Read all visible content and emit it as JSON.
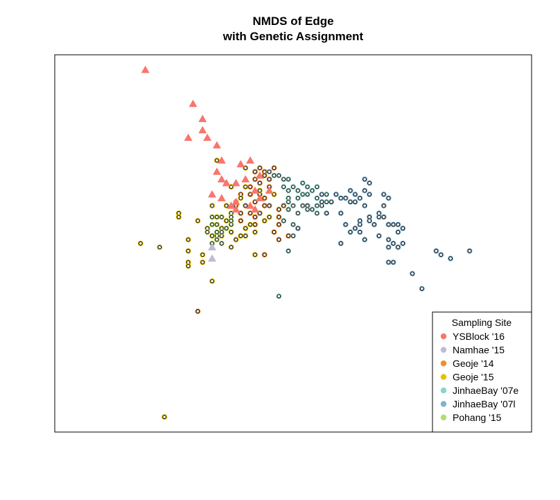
{
  "chart_data": {
    "type": "scatter",
    "title": [
      "NMDS of Edge",
      "with Genetic Assignment"
    ],
    "xlabel": "",
    "ylabel": "",
    "xlim": [
      0,
      100
    ],
    "ylim": [
      0,
      100
    ],
    "axes_shown": false,
    "grid": false,
    "legend": {
      "title": "Sampling Site",
      "placement": "bottom-right",
      "entries": [
        {
          "label": "YSBlock '16",
          "color": "#F8766D"
        },
        {
          "label": "Namhae '15",
          "color": "#BEBADA"
        },
        {
          "label": "Geoje '14",
          "color": "#F28E2B"
        },
        {
          "label": "Geoje '15",
          "color": "#E6C200"
        },
        {
          "label": "JinhaeBay '07e",
          "color": "#8DD3C7"
        },
        {
          "label": "JinhaeBay '07l",
          "color": "#80B1D3"
        },
        {
          "label": "Pohang '15",
          "color": "#B3DE69"
        }
      ]
    },
    "marker_note": "triangles: reference samples; open circles: genetically assigned samples",
    "series": [
      {
        "site": "YSBlock '16",
        "color": "#F8766D",
        "marker": "triangle",
        "points": [
          [
            19,
            96
          ],
          [
            29,
            87
          ],
          [
            31,
            83
          ],
          [
            31,
            80
          ],
          [
            28,
            78
          ],
          [
            32,
            78
          ],
          [
            34,
            76
          ],
          [
            35,
            72
          ],
          [
            39,
            71
          ],
          [
            34,
            69
          ],
          [
            35,
            67
          ],
          [
            36,
            66
          ],
          [
            38,
            66
          ],
          [
            41,
            72
          ],
          [
            43,
            68
          ],
          [
            40,
            67
          ],
          [
            45,
            64
          ],
          [
            43,
            62
          ],
          [
            42,
            64
          ],
          [
            33,
            63
          ],
          [
            41,
            60
          ],
          [
            42,
            59
          ],
          [
            38,
            59
          ],
          [
            37,
            60
          ],
          [
            35,
            62
          ],
          [
            38,
            61
          ]
        ]
      },
      {
        "site": "Namhae '15",
        "color": "#BEBADA",
        "marker": "triangle",
        "points": [
          [
            33,
            49
          ],
          [
            33,
            46
          ]
        ]
      },
      {
        "site": "Geoje '14",
        "color": "#F28E2B",
        "marker": "circle",
        "points": [
          [
            42,
            69
          ],
          [
            43,
            70
          ],
          [
            44,
            69
          ],
          [
            44,
            68
          ],
          [
            45,
            67
          ],
          [
            43,
            66
          ],
          [
            42,
            67
          ],
          [
            46,
            70
          ],
          [
            46,
            68
          ],
          [
            45,
            65
          ],
          [
            41,
            63
          ],
          [
            43,
            63
          ],
          [
            44,
            62
          ],
          [
            42,
            61
          ],
          [
            41,
            65
          ],
          [
            45,
            60
          ],
          [
            38,
            61
          ],
          [
            39,
            63
          ],
          [
            40,
            60
          ],
          [
            39,
            58
          ],
          [
            43,
            58
          ],
          [
            44,
            60
          ],
          [
            41,
            58
          ],
          [
            42,
            57
          ],
          [
            47,
            59
          ],
          [
            48,
            60
          ],
          [
            49,
            59
          ],
          [
            47,
            57
          ],
          [
            39,
            56
          ],
          [
            42,
            55
          ],
          [
            46,
            53
          ],
          [
            49,
            52
          ],
          [
            44,
            47
          ],
          [
            38,
            51
          ],
          [
            47,
            51
          ],
          [
            30,
            32
          ],
          [
            47,
            55
          ]
        ]
      },
      {
        "site": "Geoje '15",
        "color": "#E6C200",
        "marker": "circle",
        "points": [
          [
            34,
            72
          ],
          [
            40,
            70
          ],
          [
            40,
            65
          ],
          [
            37,
            65
          ],
          [
            36,
            60
          ],
          [
            33,
            60
          ],
          [
            37,
            58
          ],
          [
            34,
            57
          ],
          [
            34,
            55
          ],
          [
            36,
            56
          ],
          [
            35,
            54
          ],
          [
            35,
            52
          ],
          [
            37,
            53
          ],
          [
            40,
            52
          ],
          [
            41,
            55
          ],
          [
            44,
            56
          ],
          [
            45,
            57
          ],
          [
            26,
            58
          ],
          [
            26,
            57
          ],
          [
            30,
            56
          ],
          [
            32,
            54
          ],
          [
            33,
            52
          ],
          [
            37,
            49
          ],
          [
            39,
            52
          ],
          [
            31,
            47
          ],
          [
            28,
            48
          ],
          [
            28,
            45
          ],
          [
            28,
            44
          ],
          [
            31,
            45
          ],
          [
            33,
            40
          ],
          [
            18,
            50
          ],
          [
            22,
            49
          ],
          [
            28,
            51
          ],
          [
            38,
            51
          ],
          [
            42,
            47
          ],
          [
            46,
            63
          ],
          [
            38,
            60
          ],
          [
            39,
            62
          ],
          [
            43,
            64
          ],
          [
            40,
            54
          ],
          [
            42,
            53
          ],
          [
            23,
            4
          ]
        ]
      },
      {
        "site": "JinhaeBay '07e",
        "color": "#8DD3C7",
        "marker": "circle",
        "points": [
          [
            45,
            69
          ],
          [
            46,
            68
          ],
          [
            47,
            68
          ],
          [
            48,
            67
          ],
          [
            49,
            67
          ],
          [
            48,
            65
          ],
          [
            49,
            64
          ],
          [
            50,
            65
          ],
          [
            51,
            64
          ],
          [
            52,
            63
          ],
          [
            49,
            62
          ],
          [
            51,
            62
          ],
          [
            49,
            61
          ],
          [
            50,
            60
          ],
          [
            52,
            60
          ],
          [
            53,
            59
          ],
          [
            51,
            58
          ],
          [
            54,
            59
          ],
          [
            55,
            60
          ],
          [
            56,
            60
          ],
          [
            57,
            61
          ],
          [
            58,
            61
          ],
          [
            55,
            62
          ],
          [
            57,
            63
          ],
          [
            54,
            64
          ],
          [
            53,
            65
          ],
          [
            55,
            65
          ],
          [
            48,
            56
          ],
          [
            50,
            55
          ],
          [
            49,
            59
          ],
          [
            55,
            58
          ],
          [
            50,
            52
          ],
          [
            49,
            48
          ],
          [
            47,
            36
          ],
          [
            53,
            63
          ],
          [
            52,
            66
          ]
        ]
      },
      {
        "site": "JinhaeBay '07l",
        "color": "#80B1D3",
        "marker": "circle",
        "points": [
          [
            56,
            63
          ],
          [
            56,
            61
          ],
          [
            58,
            61
          ],
          [
            59,
            63
          ],
          [
            60,
            62
          ],
          [
            61,
            62
          ],
          [
            62,
            61
          ],
          [
            63,
            63
          ],
          [
            62,
            64
          ],
          [
            65,
            64
          ],
          [
            66,
            66
          ],
          [
            65,
            67
          ],
          [
            66,
            63
          ],
          [
            69,
            63
          ],
          [
            70,
            62
          ],
          [
            69,
            60
          ],
          [
            68,
            58
          ],
          [
            68,
            57
          ],
          [
            67,
            55
          ],
          [
            64,
            55
          ],
          [
            64,
            53
          ],
          [
            65,
            51
          ],
          [
            66,
            56
          ],
          [
            66,
            57
          ],
          [
            68,
            52
          ],
          [
            70,
            55
          ],
          [
            71,
            55
          ],
          [
            72,
            53
          ],
          [
            70,
            51
          ],
          [
            71,
            50
          ],
          [
            72,
            49
          ],
          [
            73,
            50
          ],
          [
            73,
            54
          ],
          [
            72,
            55
          ],
          [
            63,
            54
          ],
          [
            64,
            56
          ],
          [
            65,
            60
          ],
          [
            63,
            61
          ],
          [
            64,
            62
          ],
          [
            60,
            58
          ],
          [
            57,
            58
          ],
          [
            61,
            55
          ],
          [
            62,
            53
          ],
          [
            60,
            50
          ],
          [
            53,
            60
          ],
          [
            51,
            54
          ],
          [
            72,
            49
          ],
          [
            80,
            48
          ],
          [
            70,
            49
          ],
          [
            70,
            45
          ],
          [
            75,
            42
          ],
          [
            81,
            47
          ],
          [
            87,
            48
          ],
          [
            72,
            49
          ],
          [
            70,
            55
          ],
          [
            69,
            57
          ],
          [
            83,
            46
          ],
          [
            77,
            38
          ],
          [
            71,
            45
          ]
        ]
      },
      {
        "site": "Pohang '15",
        "color": "#B3DE69",
        "marker": "circle",
        "points": [
          [
            33,
            55
          ],
          [
            34,
            55
          ],
          [
            35,
            53
          ],
          [
            34,
            52
          ],
          [
            34,
            51
          ],
          [
            33,
            50
          ],
          [
            35,
            50
          ],
          [
            36,
            54
          ],
          [
            37,
            55
          ],
          [
            32,
            53
          ],
          [
            33,
            57
          ],
          [
            35,
            57
          ],
          [
            37,
            57
          ],
          [
            37,
            56
          ],
          [
            34,
            53
          ]
        ]
      }
    ]
  }
}
